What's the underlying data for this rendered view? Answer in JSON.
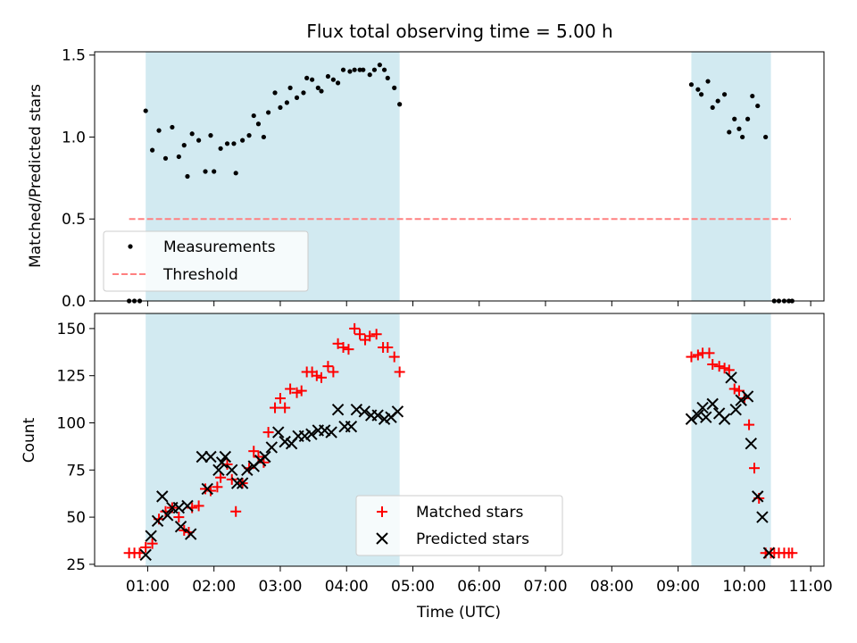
{
  "chart_data": [
    {
      "type": "scatter",
      "title": "Flux total observing time = 5.00 h",
      "xlabel": "",
      "ylabel": "Matched/Predicted stars",
      "ylim": [
        0,
        1.52
      ],
      "yticks": [
        "0.0",
        "0.5",
        "1.0",
        "1.5"
      ],
      "ytick_values": [
        0,
        0.5,
        1.0,
        1.5
      ],
      "xlim_hours": [
        0.2,
        11.2
      ],
      "shaded_intervals_hours": [
        [
          0.97,
          4.8
        ],
        [
          9.2,
          10.4
        ]
      ],
      "shade_color": "#add8e6",
      "threshold": {
        "name": "Threshold",
        "value": 0.5,
        "x_hours": [
          0.72,
          10.7
        ],
        "color": "#ff8080"
      },
      "legend": {
        "placement": "lower-left",
        "entries": [
          "Measurements",
          "Threshold"
        ]
      },
      "series": [
        {
          "name": "Measurements",
          "marker": "dot",
          "color": "#000000",
          "points": [
            [
              0.72,
              0
            ],
            [
              0.8,
              0
            ],
            [
              0.88,
              0
            ],
            [
              0.97,
              1.16
            ],
            [
              1.07,
              0.92
            ],
            [
              1.17,
              1.04
            ],
            [
              1.27,
              0.87
            ],
            [
              1.37,
              1.06
            ],
            [
              1.47,
              0.88
            ],
            [
              1.55,
              0.95
            ],
            [
              1.6,
              0.76
            ],
            [
              1.67,
              1.02
            ],
            [
              1.77,
              0.98
            ],
            [
              1.87,
              0.79
            ],
            [
              1.95,
              1.01
            ],
            [
              2.0,
              0.79
            ],
            [
              2.1,
              0.93
            ],
            [
              2.2,
              0.96
            ],
            [
              2.3,
              0.96
            ],
            [
              2.33,
              0.78
            ],
            [
              2.43,
              0.98
            ],
            [
              2.53,
              1.01
            ],
            [
              2.6,
              1.13
            ],
            [
              2.67,
              1.08
            ],
            [
              2.75,
              1.0
            ],
            [
              2.82,
              1.15
            ],
            [
              2.92,
              1.27
            ],
            [
              3.0,
              1.18
            ],
            [
              3.1,
              1.21
            ],
            [
              3.15,
              1.3
            ],
            [
              3.25,
              1.24
            ],
            [
              3.35,
              1.27
            ],
            [
              3.4,
              1.36
            ],
            [
              3.48,
              1.35
            ],
            [
              3.57,
              1.3
            ],
            [
              3.62,
              1.28
            ],
            [
              3.72,
              1.37
            ],
            [
              3.8,
              1.35
            ],
            [
              3.87,
              1.33
            ],
            [
              3.95,
              1.41
            ],
            [
              4.05,
              1.4
            ],
            [
              4.12,
              1.41
            ],
            [
              4.2,
              1.41
            ],
            [
              4.25,
              1.41
            ],
            [
              4.35,
              1.38
            ],
            [
              4.42,
              1.41
            ],
            [
              4.5,
              1.44
            ],
            [
              4.57,
              1.41
            ],
            [
              4.62,
              1.36
            ],
            [
              4.72,
              1.3
            ],
            [
              4.8,
              1.2
            ],
            [
              9.2,
              1.32
            ],
            [
              9.3,
              1.29
            ],
            [
              9.35,
              1.26
            ],
            [
              9.45,
              1.34
            ],
            [
              9.52,
              1.18
            ],
            [
              9.6,
              1.22
            ],
            [
              9.7,
              1.26
            ],
            [
              9.77,
              1.03
            ],
            [
              9.85,
              1.11
            ],
            [
              9.92,
              1.05
            ],
            [
              9.97,
              1.0
            ],
            [
              10.05,
              1.11
            ],
            [
              10.12,
              1.25
            ],
            [
              10.2,
              1.19
            ],
            [
              10.32,
              1.0
            ],
            [
              10.45,
              0
            ],
            [
              10.52,
              0
            ],
            [
              10.6,
              0
            ],
            [
              10.67,
              0
            ],
            [
              10.72,
              0
            ]
          ]
        }
      ]
    },
    {
      "type": "scatter",
      "title": "",
      "xlabel": "Time (UTC)",
      "ylabel": "Count",
      "ylim": [
        24,
        158
      ],
      "yticks": [
        "25",
        "50",
        "75",
        "100",
        "125",
        "150"
      ],
      "ytick_values": [
        25,
        50,
        75,
        100,
        125,
        150
      ],
      "xlim_hours": [
        0.2,
        11.2
      ],
      "xticks": [
        "01:00",
        "02:00",
        "03:00",
        "04:00",
        "05:00",
        "06:00",
        "07:00",
        "08:00",
        "09:00",
        "10:00",
        "11:00"
      ],
      "xtick_values_hours": [
        1,
        2,
        3,
        4,
        5,
        6,
        7,
        8,
        9,
        10,
        11
      ],
      "shaded_intervals_hours": [
        [
          0.97,
          4.8
        ],
        [
          9.2,
          10.4
        ]
      ],
      "shade_color": "#add8e6",
      "legend": {
        "placement": "lower-center",
        "entries": [
          "Matched stars",
          "Predicted stars"
        ]
      },
      "series": [
        {
          "name": "Matched stars",
          "marker": "plus",
          "color": "#ff0000",
          "points": [
            [
              0.72,
              31
            ],
            [
              0.8,
              31
            ],
            [
              0.88,
              31
            ],
            [
              0.97,
              34
            ],
            [
              1.07,
              36
            ],
            [
              1.17,
              49
            ],
            [
              1.27,
              53
            ],
            [
              1.37,
              55
            ],
            [
              1.47,
              50
            ],
            [
              1.55,
              43
            ],
            [
              1.62,
              42
            ],
            [
              1.67,
              55
            ],
            [
              1.77,
              56
            ],
            [
              1.87,
              65
            ],
            [
              1.95,
              64
            ],
            [
              2.05,
              66
            ],
            [
              2.1,
              71
            ],
            [
              2.2,
              78
            ],
            [
              2.27,
              70
            ],
            [
              2.33,
              53
            ],
            [
              2.43,
              68
            ],
            [
              2.53,
              76
            ],
            [
              2.6,
              85
            ],
            [
              2.67,
              82
            ],
            [
              2.75,
              79
            ],
            [
              2.82,
              95
            ],
            [
              2.92,
              108
            ],
            [
              3.0,
              113
            ],
            [
              3.07,
              108
            ],
            [
              3.15,
              118
            ],
            [
              3.25,
              116
            ],
            [
              3.32,
              117
            ],
            [
              3.4,
              127
            ],
            [
              3.48,
              127
            ],
            [
              3.55,
              125
            ],
            [
              3.62,
              124
            ],
            [
              3.72,
              130
            ],
            [
              3.8,
              127
            ],
            [
              3.87,
              142
            ],
            [
              3.95,
              140
            ],
            [
              4.03,
              139
            ],
            [
              4.12,
              150
            ],
            [
              4.2,
              147
            ],
            [
              4.28,
              144
            ],
            [
              4.35,
              146
            ],
            [
              4.45,
              147
            ],
            [
              4.55,
              140
            ],
            [
              4.62,
              140
            ],
            [
              4.72,
              135
            ],
            [
              4.8,
              127
            ],
            [
              9.2,
              135
            ],
            [
              9.3,
              136
            ],
            [
              9.37,
              137
            ],
            [
              9.47,
              137
            ],
            [
              9.52,
              131
            ],
            [
              9.62,
              130
            ],
            [
              9.7,
              129
            ],
            [
              9.77,
              128
            ],
            [
              9.85,
              118
            ],
            [
              9.92,
              117
            ],
            [
              10.0,
              113
            ],
            [
              10.07,
              99
            ],
            [
              10.15,
              76
            ],
            [
              10.22,
              60
            ],
            [
              10.32,
              31
            ],
            [
              10.4,
              31
            ],
            [
              10.45,
              31
            ],
            [
              10.52,
              31
            ],
            [
              10.6,
              31
            ],
            [
              10.67,
              31
            ],
            [
              10.72,
              31
            ]
          ]
        },
        {
          "name": "Predicted stars",
          "marker": "x",
          "color": "#000000",
          "points": [
            [
              0.97,
              30
            ],
            [
              1.05,
              40
            ],
            [
              1.15,
              48
            ],
            [
              1.22,
              61
            ],
            [
              1.3,
              51
            ],
            [
              1.37,
              55
            ],
            [
              1.47,
              55
            ],
            [
              1.5,
              45
            ],
            [
              1.6,
              56
            ],
            [
              1.65,
              41
            ],
            [
              1.82,
              82
            ],
            [
              1.9,
              65
            ],
            [
              1.95,
              82
            ],
            [
              2.07,
              75
            ],
            [
              2.12,
              79
            ],
            [
              2.17,
              82
            ],
            [
              2.27,
              75
            ],
            [
              2.35,
              68
            ],
            [
              2.43,
              68
            ],
            [
              2.5,
              75
            ],
            [
              2.6,
              77
            ],
            [
              2.7,
              80
            ],
            [
              2.77,
              82
            ],
            [
              2.87,
              87
            ],
            [
              2.97,
              95
            ],
            [
              3.07,
              90
            ],
            [
              3.17,
              89
            ],
            [
              3.27,
              93
            ],
            [
              3.37,
              93
            ],
            [
              3.47,
              94
            ],
            [
              3.57,
              96
            ],
            [
              3.67,
              96
            ],
            [
              3.77,
              95
            ],
            [
              3.87,
              107
            ],
            [
              3.97,
              98
            ],
            [
              4.07,
              98
            ],
            [
              4.15,
              107
            ],
            [
              4.27,
              106
            ],
            [
              4.37,
              104
            ],
            [
              4.47,
              104
            ],
            [
              4.57,
              102
            ],
            [
              4.67,
              103
            ],
            [
              4.77,
              106
            ],
            [
              9.2,
              102
            ],
            [
              9.3,
              104
            ],
            [
              9.37,
              108
            ],
            [
              9.42,
              103
            ],
            [
              9.52,
              110
            ],
            [
              9.62,
              105
            ],
            [
              9.7,
              102
            ],
            [
              9.8,
              124
            ],
            [
              9.87,
              107
            ],
            [
              9.95,
              112
            ],
            [
              10.05,
              114
            ],
            [
              10.1,
              89
            ],
            [
              10.2,
              61
            ],
            [
              10.27,
              50
            ],
            [
              10.37,
              31
            ]
          ]
        }
      ]
    }
  ]
}
